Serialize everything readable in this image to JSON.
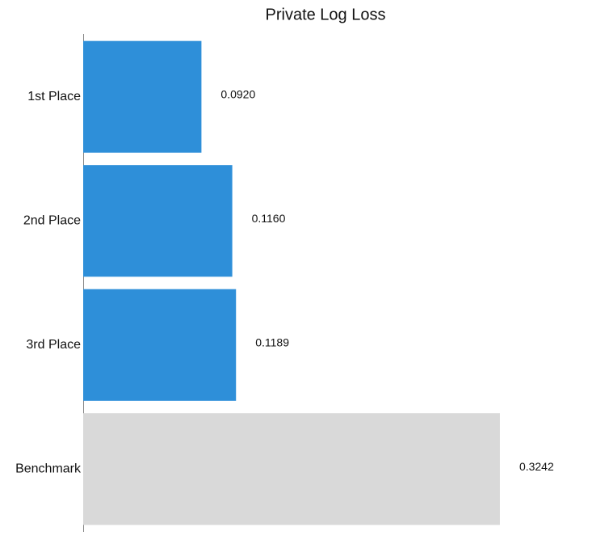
{
  "chart_data": {
    "type": "bar",
    "orientation": "horizontal",
    "title": "Private Log Loss",
    "categories": [
      "1st Place",
      "2nd Place",
      "3rd Place",
      "Benchmark"
    ],
    "values": [
      0.092,
      0.116,
      0.1189,
      0.3242
    ],
    "value_labels": [
      "0.0920",
      "0.1160",
      "0.1189",
      "0.3242"
    ],
    "colors": [
      "#2e8fd9",
      "#2e8fd9",
      "#2e8fd9",
      "#d9d9d9"
    ],
    "xlim": [
      0,
      0.35
    ],
    "grid": false
  }
}
